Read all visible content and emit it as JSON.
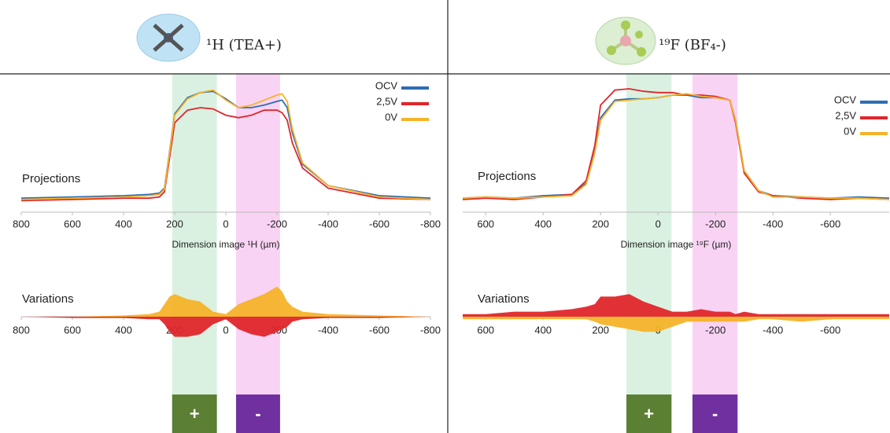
{
  "chart_data": [
    {
      "type": "line",
      "title": "¹H (TEA+)",
      "ylabel": "Projections",
      "xlabel": "Dimension image ¹H (µm)",
      "x": [
        800,
        600,
        400,
        300,
        260,
        240,
        220,
        200,
        150,
        100,
        50,
        0,
        -50,
        -100,
        -150,
        -200,
        -220,
        -240,
        -260,
        -300,
        -400,
        -600,
        -800
      ],
      "xlim": [
        800,
        -800
      ],
      "xticks": [
        800,
        600,
        400,
        200,
        0,
        -200,
        -400,
        -600,
        -800
      ],
      "ylim": [
        0,
        1
      ],
      "legend": "upper right",
      "bands": [
        {
          "from": 210,
          "to": 35,
          "color": "#d3eedc",
          "label": "+",
          "label_color": "#5b7f33"
        },
        {
          "from": -40,
          "to": -212,
          "color": "#f8cbf2",
          "label": "-",
          "label_color": "#7030a0"
        }
      ],
      "series": [
        {
          "name": "OCV",
          "color": "#2e6db4",
          "values": [
            0.08,
            0.09,
            0.1,
            0.11,
            0.12,
            0.16,
            0.45,
            0.75,
            0.88,
            0.92,
            0.93,
            0.87,
            0.8,
            0.8,
            0.82,
            0.85,
            0.86,
            0.8,
            0.6,
            0.35,
            0.18,
            0.1,
            0.08
          ]
        },
        {
          "name": "2,5V",
          "color": "#e0262b",
          "values": [
            0.06,
            0.07,
            0.08,
            0.08,
            0.09,
            0.13,
            0.4,
            0.68,
            0.78,
            0.8,
            0.79,
            0.74,
            0.72,
            0.74,
            0.78,
            0.78,
            0.76,
            0.7,
            0.52,
            0.32,
            0.16,
            0.08,
            0.07
          ]
        },
        {
          "name": "0V",
          "color": "#f5b329",
          "values": [
            0.07,
            0.08,
            0.09,
            0.1,
            0.11,
            0.15,
            0.44,
            0.74,
            0.87,
            0.92,
            0.94,
            0.86,
            0.8,
            0.82,
            0.86,
            0.9,
            0.91,
            0.85,
            0.63,
            0.36,
            0.18,
            0.09,
            0.07
          ]
        }
      ]
    },
    {
      "type": "area",
      "ylabel": "Variations",
      "x": [
        800,
        600,
        400,
        300,
        260,
        240,
        220,
        200,
        150,
        100,
        50,
        0,
        -50,
        -100,
        -150,
        -200,
        -220,
        -240,
        -260,
        -300,
        -400,
        -600,
        -800
      ],
      "xlim": [
        800,
        -800
      ],
      "xticks": [
        800,
        600,
        400,
        200,
        0,
        -200,
        -400,
        -600,
        -800
      ],
      "ylim": [
        -0.15,
        0.15
      ],
      "series": [
        {
          "color": "#f5b329",
          "values": [
            0,
            0,
            0.005,
            0.01,
            0.02,
            0.05,
            0.08,
            0.09,
            0.07,
            0.06,
            0.02,
            0.01,
            0.05,
            0.07,
            0.09,
            0.12,
            0.1,
            0.06,
            0.04,
            0.02,
            0.01,
            0.005,
            0
          ]
        },
        {
          "color": "#e0262b",
          "values": [
            0,
            -0.005,
            -0.005,
            -0.01,
            -0.01,
            -0.03,
            -0.06,
            -0.08,
            -0.08,
            -0.07,
            -0.03,
            -0.01,
            -0.05,
            -0.07,
            -0.08,
            -0.06,
            -0.05,
            -0.04,
            -0.02,
            -0.01,
            -0.005,
            -0.005,
            0
          ]
        }
      ]
    },
    {
      "type": "line",
      "title": "¹⁹F (BF₄-)",
      "ylabel": "Projections",
      "xlabel": "Dimension image ¹⁹F (µm)",
      "x": [
        680,
        600,
        500,
        400,
        300,
        250,
        220,
        200,
        150,
        100,
        50,
        0,
        -50,
        -100,
        -150,
        -200,
        -250,
        -270,
        -300,
        -350,
        -400,
        -500,
        -600,
        -700,
        -805
      ],
      "xlim": [
        680,
        -805
      ],
      "xticks": [
        600,
        400,
        200,
        0,
        -200,
        -400,
        -600
      ],
      "ylim": [
        0,
        1
      ],
      "legend": "upper right",
      "bands": [
        {
          "from": 110,
          "to": -47,
          "color": "#d3eedc",
          "label": "+",
          "label_color": "#5b7f33"
        },
        {
          "from": -120,
          "to": -277,
          "color": "#f8cbf2",
          "label": "-",
          "label_color": "#7030a0"
        }
      ],
      "series": [
        {
          "name": "OCV",
          "color": "#2e6db4",
          "values": [
            0.08,
            0.09,
            0.08,
            0.1,
            0.11,
            0.2,
            0.45,
            0.72,
            0.86,
            0.87,
            0.87,
            0.88,
            0.9,
            0.9,
            0.88,
            0.88,
            0.86,
            0.7,
            0.3,
            0.14,
            0.1,
            0.09,
            0.08,
            0.09,
            0.08
          ]
        },
        {
          "name": "2,5V",
          "color": "#e0262b",
          "values": [
            0.07,
            0.08,
            0.07,
            0.09,
            0.11,
            0.22,
            0.5,
            0.82,
            0.94,
            0.95,
            0.93,
            0.92,
            0.92,
            0.9,
            0.9,
            0.89,
            0.86,
            0.68,
            0.28,
            0.13,
            0.1,
            0.08,
            0.07,
            0.08,
            0.07
          ]
        },
        {
          "name": "0V",
          "color": "#f5b329",
          "values": [
            0.08,
            0.09,
            0.08,
            0.09,
            0.1,
            0.19,
            0.44,
            0.7,
            0.85,
            0.86,
            0.87,
            0.88,
            0.9,
            0.91,
            0.89,
            0.88,
            0.86,
            0.7,
            0.3,
            0.14,
            0.09,
            0.09,
            0.08,
            0.08,
            0.07
          ]
        }
      ]
    },
    {
      "type": "area",
      "ylabel": "Variations",
      "x": [
        680,
        600,
        500,
        400,
        300,
        250,
        220,
        200,
        150,
        100,
        50,
        0,
        -50,
        -100,
        -150,
        -200,
        -250,
        -270,
        -300,
        -350,
        -400,
        -500,
        -600,
        -700,
        -805
      ],
      "xlim": [
        680,
        -805
      ],
      "xticks": [
        600,
        400,
        200,
        0,
        -200,
        -400,
        -600
      ],
      "ylim": [
        -0.15,
        0.15
      ],
      "series": [
        {
          "color": "#e0262b",
          "values": [
            0.01,
            0.01,
            0.02,
            0.02,
            0.03,
            0.04,
            0.05,
            0.08,
            0.08,
            0.09,
            0.06,
            0.04,
            0.02,
            0.02,
            0.03,
            0.02,
            0.02,
            0.01,
            0.02,
            0.01,
            0.01,
            0.01,
            0.01,
            0.01,
            0.01
          ]
        },
        {
          "color": "#f5b329",
          "values": [
            -0.01,
            -0.01,
            -0.01,
            -0.01,
            -0.01,
            -0.01,
            -0.02,
            -0.03,
            -0.04,
            -0.05,
            -0.06,
            -0.06,
            -0.04,
            -0.02,
            -0.02,
            -0.02,
            -0.02,
            -0.02,
            -0.02,
            -0.01,
            -0.01,
            -0.02,
            -0.01,
            -0.01,
            -0.01
          ]
        }
      ]
    }
  ]
}
